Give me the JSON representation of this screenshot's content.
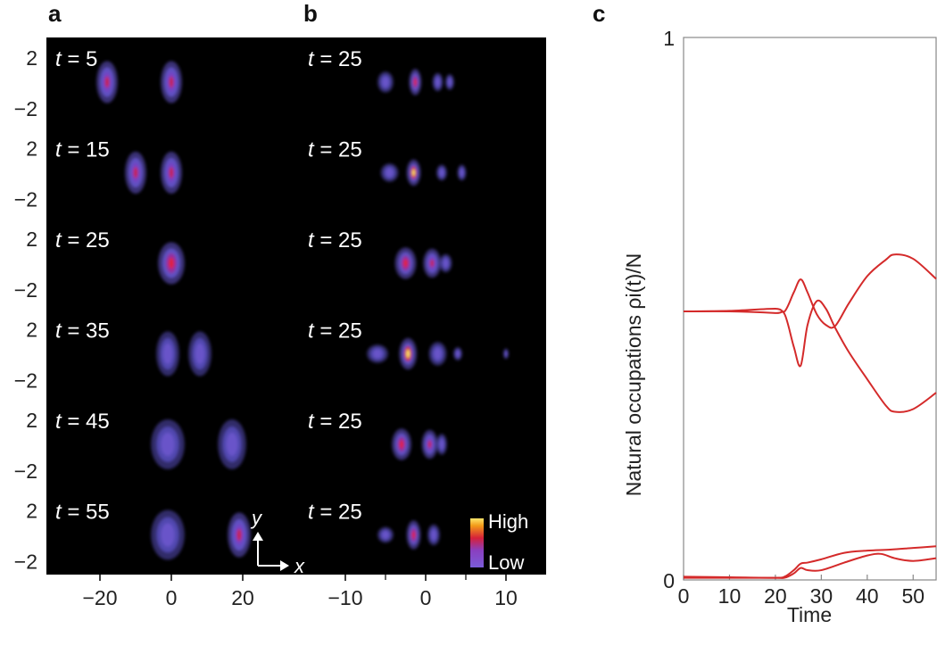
{
  "panels": {
    "a": {
      "letter": "a",
      "time_prefix": "t",
      "times": [
        "5",
        "15",
        "25",
        "35",
        "45",
        "55"
      ],
      "y_ticks": [
        "2",
        "−2"
      ],
      "x_ticks": [
        {
          "v": -20,
          "label": "−20"
        },
        {
          "v": 0,
          "label": "0"
        },
        {
          "v": 20,
          "label": "20"
        }
      ],
      "x_range": [
        -35,
        35
      ],
      "axes_arrows": {
        "y": "y",
        "x": "x"
      }
    },
    "b": {
      "letter": "b",
      "time_prefix": "t",
      "times": [
        "25",
        "25",
        "25",
        "25",
        "25",
        "25"
      ],
      "x_ticks": [
        {
          "v": -10,
          "label": "−10"
        },
        {
          "v": 0,
          "label": "0"
        },
        {
          "v": 10,
          "label": "10"
        }
      ],
      "x_range": [
        -15,
        15
      ],
      "colorbar": {
        "high": "High",
        "low": "Low"
      }
    },
    "c": {
      "letter": "c"
    }
  },
  "chart_data": [
    {
      "panel": "a",
      "type": "heatmap",
      "x_range": [
        -35,
        35
      ],
      "rows": [
        {
          "t": 5,
          "blobs": [
            {
              "x": -18,
              "amp": 0.55,
              "sx": 1.2,
              "sy": 1.6
            },
            {
              "x": 0,
              "amp": 0.55,
              "sx": 1.2,
              "sy": 1.6
            }
          ]
        },
        {
          "t": 15,
          "blobs": [
            {
              "x": -10,
              "amp": 0.55,
              "sx": 1.2,
              "sy": 1.6
            },
            {
              "x": 0,
              "amp": 0.55,
              "sx": 1.2,
              "sy": 1.6
            }
          ]
        },
        {
          "t": 25,
          "blobs": [
            {
              "x": 0,
              "amp": 0.75,
              "sx": 1.5,
              "sy": 1.6
            }
          ]
        },
        {
          "t": 35,
          "blobs": [
            {
              "x": -1,
              "amp": 0.45,
              "sx": 1.3,
              "sy": 1.7
            },
            {
              "x": 8,
              "amp": 0.45,
              "sx": 1.3,
              "sy": 1.7
            }
          ]
        },
        {
          "t": 45,
          "blobs": [
            {
              "x": -1,
              "amp": 0.3,
              "sx": 1.9,
              "sy": 1.9
            },
            {
              "x": 17,
              "amp": 0.35,
              "sx": 1.6,
              "sy": 1.9
            }
          ]
        },
        {
          "t": 55,
          "blobs": [
            {
              "x": -1,
              "amp": 0.3,
              "sx": 1.9,
              "sy": 1.9
            },
            {
              "x": 19,
              "amp": 0.5,
              "sx": 1.3,
              "sy": 1.7
            }
          ]
        }
      ]
    },
    {
      "panel": "b",
      "type": "heatmap",
      "x_range": [
        -15,
        15
      ],
      "rows": [
        {
          "t": 25,
          "blobs": [
            {
              "x": -1.3,
              "amp": 0.7,
              "sx": 0.7,
              "sy": 1.0
            },
            {
              "x": -5,
              "amp": 0.2,
              "sx": 0.9,
              "sy": 0.8
            },
            {
              "x": 1.5,
              "amp": 0.2,
              "sx": 0.6,
              "sy": 0.7
            },
            {
              "x": 3,
              "amp": 0.15,
              "sx": 0.5,
              "sy": 0.6
            }
          ]
        },
        {
          "t": 25,
          "blobs": [
            {
              "x": -1.5,
              "amp": 0.95,
              "sx": 0.8,
              "sy": 1.0
            },
            {
              "x": -4.5,
              "amp": 0.3,
              "sx": 1.0,
              "sy": 0.7
            },
            {
              "x": 2,
              "amp": 0.2,
              "sx": 0.6,
              "sy": 0.6
            },
            {
              "x": 4.5,
              "amp": 0.12,
              "sx": 0.5,
              "sy": 0.6
            }
          ]
        },
        {
          "t": 25,
          "blobs": [
            {
              "x": -2.5,
              "amp": 0.75,
              "sx": 1.2,
              "sy": 1.2
            },
            {
              "x": 0.8,
              "amp": 0.55,
              "sx": 1.0,
              "sy": 1.1
            },
            {
              "x": 2.5,
              "amp": 0.2,
              "sx": 0.7,
              "sy": 0.7
            }
          ]
        },
        {
          "t": 25,
          "blobs": [
            {
              "x": -2.2,
              "amp": 1.0,
              "sx": 1.0,
              "sy": 1.2
            },
            {
              "x": -6,
              "amp": 0.2,
              "sx": 1.2,
              "sy": 0.7
            },
            {
              "x": 1.5,
              "amp": 0.3,
              "sx": 1.0,
              "sy": 0.9
            },
            {
              "x": 4,
              "amp": 0.15,
              "sx": 0.5,
              "sy": 0.5
            },
            {
              "x": 10,
              "amp": 0.12,
              "sx": 0.3,
              "sy": 0.4
            }
          ]
        },
        {
          "t": 25,
          "blobs": [
            {
              "x": -3,
              "amp": 0.75,
              "sx": 1.1,
              "sy": 1.2
            },
            {
              "x": 0.5,
              "amp": 0.6,
              "sx": 0.9,
              "sy": 1.1
            },
            {
              "x": 2,
              "amp": 0.2,
              "sx": 0.6,
              "sy": 0.8
            }
          ]
        },
        {
          "t": 25,
          "blobs": [
            {
              "x": -1.5,
              "amp": 0.85,
              "sx": 0.8,
              "sy": 1.1
            },
            {
              "x": -5,
              "amp": 0.15,
              "sx": 0.9,
              "sy": 0.6
            },
            {
              "x": 1,
              "amp": 0.2,
              "sx": 0.7,
              "sy": 0.8
            }
          ]
        }
      ],
      "colorbar": {
        "labels": [
          "High",
          "Low"
        ]
      }
    },
    {
      "panel": "c",
      "type": "line",
      "xlabel": "Time",
      "ylabel": "Natural occupations ρi(t)/N",
      "xlim": [
        0,
        55
      ],
      "ylim": [
        0,
        1
      ],
      "x_ticks": [
        0,
        10,
        20,
        30,
        40,
        50
      ],
      "y_ticks": [
        0,
        1
      ],
      "series_color": "#d42a2a",
      "series": [
        {
          "x": [
            0,
            10,
            20,
            22,
            24,
            25.5,
            27,
            29,
            31,
            33,
            36,
            40,
            44,
            46,
            50,
            55
          ],
          "y": [
            0.495,
            0.496,
            0.5,
            0.495,
            0.53,
            0.554,
            0.53,
            0.49,
            0.47,
            0.468,
            0.51,
            0.56,
            0.59,
            0.6,
            0.592,
            0.555
          ]
        },
        {
          "x": [
            0,
            10,
            20,
            22,
            24,
            25.5,
            27,
            29,
            31,
            33,
            36,
            40,
            44,
            46,
            50,
            55
          ],
          "y": [
            0.495,
            0.495,
            0.492,
            0.49,
            0.43,
            0.395,
            0.47,
            0.514,
            0.5,
            0.465,
            0.42,
            0.37,
            0.322,
            0.31,
            0.315,
            0.345
          ]
        },
        {
          "x": [
            0,
            10,
            20,
            22,
            24,
            25.5,
            27,
            30,
            35,
            40,
            45,
            50,
            55
          ],
          "y": [
            0.006,
            0.005,
            0.004,
            0.006,
            0.018,
            0.03,
            0.032,
            0.038,
            0.05,
            0.054,
            0.056,
            0.059,
            0.062
          ]
        },
        {
          "x": [
            0,
            10,
            20,
            22,
            24,
            25.5,
            27,
            30,
            35,
            40,
            43,
            46,
            50,
            55
          ],
          "y": [
            0.004,
            0.004,
            0.004,
            0.004,
            0.012,
            0.022,
            0.018,
            0.018,
            0.032,
            0.045,
            0.048,
            0.04,
            0.035,
            0.04
          ]
        }
      ]
    }
  ]
}
